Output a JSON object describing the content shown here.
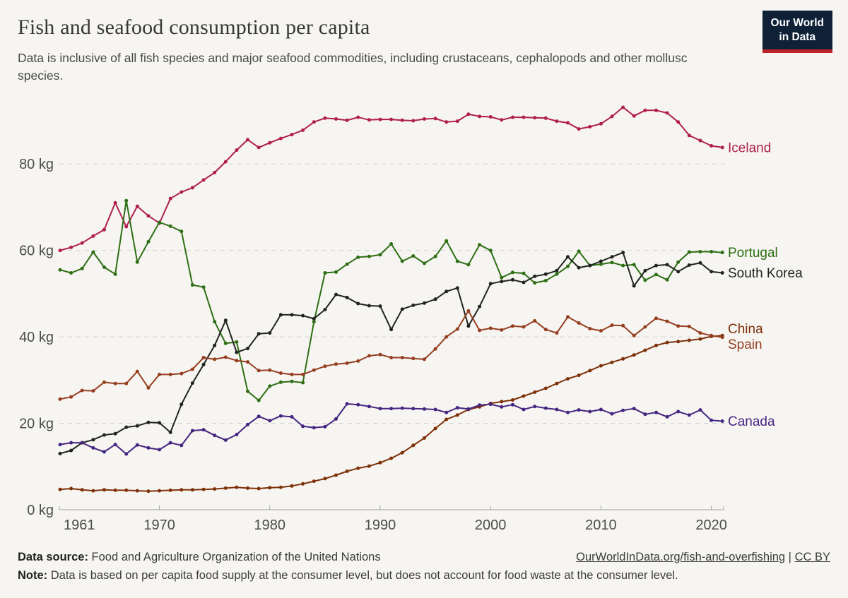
{
  "header": {
    "title": "Fish and seafood consumption per capita",
    "subtitle": "Data is inclusive of all fish species and major seafood commodities, including crustaceans, cephalopods and other mollusc species.",
    "logo": {
      "line1": "Our World",
      "line2": "in Data"
    }
  },
  "chart_data": {
    "type": "line",
    "title": "Fish and seafood consumption per capita",
    "unit": "kg",
    "x_start": 1961,
    "x_end": 2021,
    "x_ticks": [
      1961,
      1970,
      1980,
      1990,
      2000,
      2010,
      2020
    ],
    "y_ticks": [
      {
        "value": 0,
        "label": "0 kg"
      },
      {
        "value": 20,
        "label": "20 kg"
      },
      {
        "value": 40,
        "label": "40 kg"
      },
      {
        "value": 60,
        "label": "60 kg"
      },
      {
        "value": 80,
        "label": "80 kg"
      }
    ],
    "ylim": [
      0,
      95
    ],
    "grid": true,
    "legend_position": "right-end-labels",
    "series": [
      {
        "name": "Iceland",
        "color": "#b01e4f",
        "values": [
          60.0,
          60.7,
          61.7,
          63.3,
          64.8,
          71.0,
          65.5,
          70.2,
          68.0,
          66.3,
          72.0,
          73.5,
          74.5,
          76.3,
          78.0,
          80.5,
          83.2,
          85.6,
          83.8,
          84.9,
          85.9,
          86.8,
          87.8,
          89.7,
          90.6,
          90.4,
          90.1,
          90.8,
          90.2,
          90.3,
          90.3,
          90.1,
          90.0,
          90.4,
          90.5,
          89.7,
          89.9,
          91.5,
          91.0,
          90.9,
          90.2,
          90.8,
          90.8,
          90.7,
          90.6,
          89.9,
          89.5,
          88.1,
          88.6,
          89.3,
          91.0,
          93.1,
          91.1,
          92.4,
          92.4,
          91.8,
          89.7,
          86.6,
          85.4,
          84.2,
          83.8
        ]
      },
      {
        "name": "Portugal",
        "color": "#2e6f14",
        "values": [
          55.5,
          54.8,
          55.8,
          59.6,
          56.1,
          54.5,
          71.5,
          57.3,
          62.0,
          66.5,
          65.6,
          64.4,
          52.0,
          51.5,
          43.5,
          38.5,
          38.8,
          27.4,
          25.3,
          28.6,
          29.5,
          29.7,
          29.4,
          43.5,
          54.8,
          55.0,
          56.8,
          58.4,
          58.6,
          59.0,
          61.5,
          57.5,
          58.7,
          57.0,
          58.6,
          62.2,
          57.5,
          56.7,
          61.3,
          60.0,
          53.7,
          54.9,
          54.7,
          52.5,
          53.0,
          54.5,
          56.3,
          59.8,
          56.5,
          56.8,
          57.2,
          56.5,
          56.7,
          53.1,
          54.4,
          53.2,
          57.3,
          59.6,
          59.7,
          59.7,
          59.5
        ]
      },
      {
        "name": "South Korea",
        "color": "#20241f",
        "values": [
          13.0,
          13.7,
          15.5,
          16.2,
          17.3,
          17.6,
          19.1,
          19.4,
          20.2,
          20.1,
          17.9,
          24.4,
          29.3,
          33.6,
          38.0,
          43.8,
          36.4,
          37.3,
          40.7,
          40.9,
          45.1,
          45.1,
          44.9,
          44.2,
          46.3,
          49.8,
          49.1,
          47.7,
          47.2,
          47.1,
          41.7,
          46.4,
          47.3,
          47.8,
          48.7,
          50.5,
          51.3,
          42.5,
          47.0,
          52.3,
          52.8,
          53.2,
          52.6,
          54.0,
          54.5,
          55.3,
          58.5,
          56.0,
          56.5,
          57.5,
          58.5,
          59.5,
          51.8,
          55.3,
          56.5,
          56.7,
          55.1,
          56.6,
          57.1,
          55.1,
          54.8
        ]
      },
      {
        "name": "China",
        "color": "#7e3108",
        "values": [
          4.7,
          4.9,
          4.6,
          4.4,
          4.6,
          4.5,
          4.5,
          4.4,
          4.3,
          4.4,
          4.5,
          4.6,
          4.6,
          4.7,
          4.8,
          5.0,
          5.2,
          5.0,
          4.9,
          5.1,
          5.2,
          5.5,
          6.0,
          6.6,
          7.2,
          8.0,
          8.9,
          9.6,
          10.1,
          10.9,
          11.9,
          13.2,
          14.9,
          16.6,
          18.8,
          20.9,
          21.9,
          23.2,
          23.8,
          24.6,
          25.0,
          25.4,
          26.3,
          27.2,
          28.1,
          29.2,
          30.3,
          31.1,
          32.2,
          33.3,
          34.1,
          34.9,
          35.8,
          36.9,
          38.0,
          38.7,
          38.9,
          39.2,
          39.5,
          40.1,
          40.3
        ]
      },
      {
        "name": "Spain",
        "color": "#963f20",
        "values": [
          25.6,
          26.1,
          27.6,
          27.5,
          29.5,
          29.2,
          29.2,
          32.0,
          28.2,
          31.3,
          31.3,
          31.5,
          32.5,
          35.2,
          34.8,
          35.3,
          34.5,
          34.2,
          32.2,
          32.3,
          31.6,
          31.3,
          31.3,
          32.3,
          33.2,
          33.7,
          33.9,
          34.4,
          35.6,
          35.9,
          35.2,
          35.2,
          35.0,
          34.8,
          37.2,
          40.0,
          41.8,
          46.0,
          41.5,
          42.0,
          41.6,
          42.5,
          42.3,
          43.7,
          41.7,
          40.9,
          44.6,
          43.2,
          41.9,
          41.4,
          42.7,
          42.6,
          40.3,
          42.3,
          44.3,
          43.6,
          42.5,
          42.4,
          40.9,
          40.3,
          39.9
        ]
      },
      {
        "name": "Canada",
        "color": "#452580",
        "values": [
          15.1,
          15.5,
          15.5,
          14.3,
          13.4,
          15.1,
          12.9,
          15.0,
          14.3,
          13.9,
          15.5,
          14.9,
          18.3,
          18.5,
          17.2,
          16.1,
          17.4,
          19.7,
          21.6,
          20.6,
          21.7,
          21.5,
          19.3,
          19.0,
          19.2,
          21.0,
          24.5,
          24.3,
          23.9,
          23.4,
          23.4,
          23.5,
          23.4,
          23.3,
          23.2,
          22.5,
          23.6,
          23.3,
          24.2,
          24.4,
          23.8,
          24.3,
          23.2,
          23.9,
          23.5,
          23.2,
          22.5,
          23.1,
          22.7,
          23.2,
          22.2,
          23.0,
          23.4,
          22.1,
          22.5,
          21.5,
          22.7,
          21.9,
          23.1,
          20.7,
          20.5
        ]
      }
    ]
  },
  "footer": {
    "source_label": "Data source:",
    "source_text": " Food and Agriculture Organization of the United Nations",
    "link1": "OurWorldInData.org/fish-and-overfishing",
    "separator": " | ",
    "link2": "CC BY",
    "note_label": "Note:",
    "note_text": " Data is based on per capita food supply at the consumer level, but does not account for food waste at the consumer level."
  }
}
